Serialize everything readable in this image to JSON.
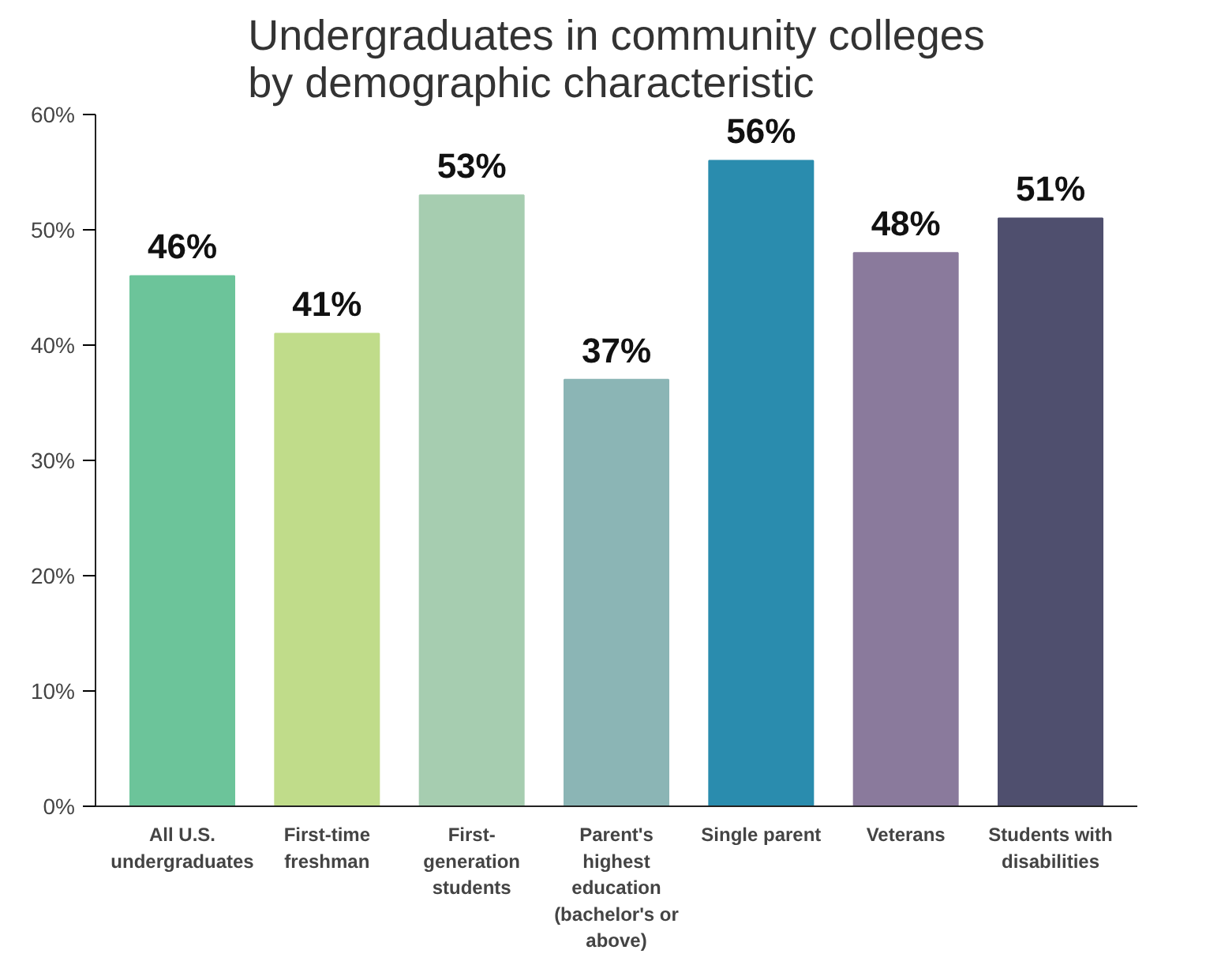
{
  "chart_data": {
    "type": "bar",
    "title": "Undergraduates in community colleges by demographic characteristic",
    "categories": [
      "All U.S. undergraduates",
      "First-time freshman",
      "First-generation students",
      "Parent's highest education (bachelor's or above)",
      "Single parent",
      "Veterans",
      "Students with disabilities"
    ],
    "values": [
      46,
      41,
      53,
      37,
      56,
      48,
      51
    ],
    "colors": [
      "#6cc49a",
      "#c0dc8a",
      "#a6cdb0",
      "#8bb5b5",
      "#2a8cae",
      "#8a7a9c",
      "#4f4f6e"
    ],
    "value_labels": [
      "46%",
      "41%",
      "53%",
      "37%",
      "56%",
      "48%",
      "51%"
    ],
    "ylim": [
      0,
      60
    ],
    "yticks": [
      {
        "value": 0,
        "label": "0%"
      },
      {
        "value": 10,
        "label": "10%"
      },
      {
        "value": 20,
        "label": "20%"
      },
      {
        "value": 30,
        "label": "30%"
      },
      {
        "value": 40,
        "label": "40%"
      },
      {
        "value": 50,
        "label": "50%"
      },
      {
        "value": 60,
        "label": "60%"
      }
    ],
    "grid": false
  }
}
